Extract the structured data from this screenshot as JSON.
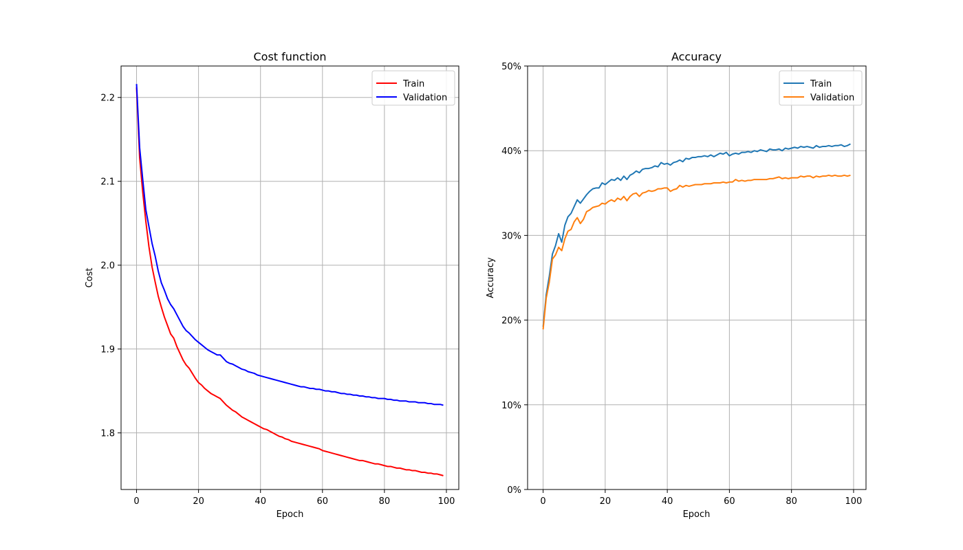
{
  "chart_data": [
    {
      "type": "line",
      "title": "Cost function",
      "xlabel": "Epoch",
      "ylabel": "Cost",
      "xlim": [
        -5,
        104
      ],
      "ylim": [
        1.7325,
        2.2375
      ],
      "xticks": [
        0,
        20,
        40,
        60,
        80,
        100
      ],
      "yticks": [
        1.8,
        1.9,
        2.0,
        2.1,
        2.2
      ],
      "ytick_format": "fixed1",
      "grid": true,
      "legend_position": "top-right",
      "series": [
        {
          "name": "Train",
          "color": "#ff0000",
          "x": [
            0,
            1,
            2,
            3,
            4,
            5,
            6,
            7,
            8,
            9,
            10,
            11,
            12,
            13,
            14,
            15,
            16,
            17,
            18,
            19,
            20,
            21,
            22,
            23,
            24,
            25,
            26,
            27,
            28,
            29,
            30,
            31,
            32,
            33,
            34,
            35,
            36,
            37,
            38,
            39,
            40,
            41,
            42,
            43,
            44,
            45,
            46,
            47,
            48,
            49,
            50,
            51,
            52,
            53,
            54,
            55,
            56,
            57,
            58,
            59,
            60,
            61,
            62,
            63,
            64,
            65,
            66,
            67,
            68,
            69,
            70,
            71,
            72,
            73,
            74,
            75,
            76,
            77,
            78,
            79,
            80,
            81,
            82,
            83,
            84,
            85,
            86,
            87,
            88,
            89,
            90,
            91,
            92,
            93,
            94,
            95,
            96,
            97,
            98,
            99
          ],
          "y": [
            2.212,
            2.128,
            2.087,
            2.052,
            2.022,
            1.998,
            1.98,
            1.963,
            1.95,
            1.938,
            1.928,
            1.918,
            1.913,
            1.903,
            1.895,
            1.887,
            1.881,
            1.877,
            1.871,
            1.865,
            1.86,
            1.857,
            1.853,
            1.85,
            1.847,
            1.845,
            1.843,
            1.841,
            1.837,
            1.833,
            1.83,
            1.827,
            1.825,
            1.822,
            1.819,
            1.817,
            1.815,
            1.813,
            1.811,
            1.809,
            1.807,
            1.805,
            1.804,
            1.802,
            1.8,
            1.798,
            1.796,
            1.795,
            1.793,
            1.792,
            1.79,
            1.789,
            1.788,
            1.787,
            1.786,
            1.785,
            1.784,
            1.783,
            1.782,
            1.781,
            1.779,
            1.778,
            1.777,
            1.776,
            1.775,
            1.774,
            1.773,
            1.772,
            1.771,
            1.77,
            1.769,
            1.768,
            1.767,
            1.767,
            1.766,
            1.765,
            1.764,
            1.763,
            1.763,
            1.762,
            1.761,
            1.76,
            1.76,
            1.759,
            1.758,
            1.758,
            1.757,
            1.756,
            1.756,
            1.755,
            1.755,
            1.754,
            1.753,
            1.753,
            1.752,
            1.752,
            1.751,
            1.751,
            1.75,
            1.749
          ]
        },
        {
          "name": "Validation",
          "color": "#0000ff",
          "x": [
            0,
            1,
            2,
            3,
            4,
            5,
            6,
            7,
            8,
            9,
            10,
            11,
            12,
            13,
            14,
            15,
            16,
            17,
            18,
            19,
            20,
            21,
            22,
            23,
            24,
            25,
            26,
            27,
            28,
            29,
            30,
            31,
            32,
            33,
            34,
            35,
            36,
            37,
            38,
            39,
            40,
            41,
            42,
            43,
            44,
            45,
            46,
            47,
            48,
            49,
            50,
            51,
            52,
            53,
            54,
            55,
            56,
            57,
            58,
            59,
            60,
            61,
            62,
            63,
            64,
            65,
            66,
            67,
            68,
            69,
            70,
            71,
            72,
            73,
            74,
            75,
            76,
            77,
            78,
            79,
            80,
            81,
            82,
            83,
            84,
            85,
            86,
            87,
            88,
            89,
            90,
            91,
            92,
            93,
            94,
            95,
            96,
            97,
            98,
            99
          ],
          "y": [
            2.216,
            2.14,
            2.102,
            2.066,
            2.046,
            2.026,
            2.011,
            1.993,
            1.979,
            1.97,
            1.96,
            1.953,
            1.948,
            1.941,
            1.934,
            1.927,
            1.922,
            1.919,
            1.915,
            1.911,
            1.908,
            1.905,
            1.902,
            1.899,
            1.897,
            1.895,
            1.893,
            1.893,
            1.889,
            1.885,
            1.883,
            1.882,
            1.88,
            1.878,
            1.876,
            1.875,
            1.873,
            1.872,
            1.871,
            1.869,
            1.868,
            1.867,
            1.866,
            1.865,
            1.864,
            1.863,
            1.862,
            1.861,
            1.86,
            1.859,
            1.858,
            1.857,
            1.856,
            1.855,
            1.855,
            1.854,
            1.853,
            1.853,
            1.852,
            1.852,
            1.851,
            1.85,
            1.85,
            1.849,
            1.849,
            1.848,
            1.847,
            1.847,
            1.846,
            1.846,
            1.845,
            1.845,
            1.844,
            1.844,
            1.843,
            1.843,
            1.842,
            1.842,
            1.841,
            1.841,
            1.841,
            1.84,
            1.84,
            1.839,
            1.839,
            1.838,
            1.838,
            1.838,
            1.837,
            1.837,
            1.837,
            1.836,
            1.836,
            1.836,
            1.835,
            1.835,
            1.834,
            1.834,
            1.834,
            1.833
          ]
        }
      ]
    },
    {
      "type": "line",
      "title": "Accuracy",
      "xlabel": "Epoch",
      "ylabel": "Accuracy",
      "xlim": [
        -5,
        104
      ],
      "ylim": [
        0,
        50
      ],
      "xticks": [
        0,
        20,
        40,
        60,
        80,
        100
      ],
      "yticks": [
        0,
        10,
        20,
        30,
        40,
        50
      ],
      "ytick_format": "percent",
      "grid": true,
      "legend_position": "top-right",
      "series": [
        {
          "name": "Train",
          "color": "#1f77b4",
          "x": [
            0,
            1,
            2,
            3,
            4,
            5,
            6,
            7,
            8,
            9,
            10,
            11,
            12,
            13,
            14,
            15,
            16,
            17,
            18,
            19,
            20,
            21,
            22,
            23,
            24,
            25,
            26,
            27,
            28,
            29,
            30,
            31,
            32,
            33,
            34,
            35,
            36,
            37,
            38,
            39,
            40,
            41,
            42,
            43,
            44,
            45,
            46,
            47,
            48,
            49,
            50,
            51,
            52,
            53,
            54,
            55,
            56,
            57,
            58,
            59,
            60,
            61,
            62,
            63,
            64,
            65,
            66,
            67,
            68,
            69,
            70,
            71,
            72,
            73,
            74,
            75,
            76,
            77,
            78,
            79,
            80,
            81,
            82,
            83,
            84,
            85,
            86,
            87,
            88,
            89,
            90,
            91,
            92,
            93,
            94,
            95,
            96,
            97,
            98,
            99
          ],
          "y": [
            19.2,
            23.0,
            25.2,
            27.8,
            28.8,
            30.2,
            29.2,
            31.2,
            32.2,
            32.6,
            33.4,
            34.2,
            33.8,
            34.3,
            34.8,
            35.2,
            35.5,
            35.6,
            35.6,
            36.2,
            36.0,
            36.3,
            36.6,
            36.5,
            36.8,
            36.5,
            37.0,
            36.6,
            37.1,
            37.3,
            37.6,
            37.4,
            37.8,
            37.9,
            37.9,
            38.0,
            38.2,
            38.1,
            38.6,
            38.4,
            38.5,
            38.3,
            38.6,
            38.7,
            38.9,
            38.7,
            39.1,
            39.0,
            39.2,
            39.2,
            39.3,
            39.3,
            39.4,
            39.3,
            39.5,
            39.3,
            39.5,
            39.7,
            39.6,
            39.8,
            39.4,
            39.6,
            39.7,
            39.6,
            39.8,
            39.8,
            39.9,
            39.8,
            40.0,
            39.9,
            40.1,
            40.0,
            39.9,
            40.2,
            40.1,
            40.1,
            40.2,
            40.0,
            40.3,
            40.2,
            40.3,
            40.4,
            40.3,
            40.5,
            40.4,
            40.5,
            40.4,
            40.3,
            40.6,
            40.4,
            40.5,
            40.5,
            40.6,
            40.5,
            40.6,
            40.6,
            40.7,
            40.5,
            40.6,
            40.8
          ]
        },
        {
          "name": "Validation",
          "color": "#ff7f0e",
          "x": [
            0,
            1,
            2,
            3,
            4,
            5,
            6,
            7,
            8,
            9,
            10,
            11,
            12,
            13,
            14,
            15,
            16,
            17,
            18,
            19,
            20,
            21,
            22,
            23,
            24,
            25,
            26,
            27,
            28,
            29,
            30,
            31,
            32,
            33,
            34,
            35,
            36,
            37,
            38,
            39,
            40,
            41,
            42,
            43,
            44,
            45,
            46,
            47,
            48,
            49,
            50,
            51,
            52,
            53,
            54,
            55,
            56,
            57,
            58,
            59,
            60,
            61,
            62,
            63,
            64,
            65,
            66,
            67,
            68,
            69,
            70,
            71,
            72,
            73,
            74,
            75,
            76,
            77,
            78,
            79,
            80,
            81,
            82,
            83,
            84,
            85,
            86,
            87,
            88,
            89,
            90,
            91,
            92,
            93,
            94,
            95,
            96,
            97,
            98,
            99
          ],
          "y": [
            18.9,
            22.6,
            24.5,
            27.2,
            27.7,
            28.6,
            28.2,
            29.6,
            30.5,
            30.7,
            31.6,
            32.1,
            31.4,
            31.9,
            32.8,
            33.0,
            33.3,
            33.4,
            33.5,
            33.8,
            33.7,
            34.0,
            34.2,
            34.0,
            34.4,
            34.2,
            34.6,
            34.1,
            34.6,
            34.9,
            35.0,
            34.6,
            35.0,
            35.1,
            35.3,
            35.2,
            35.3,
            35.5,
            35.5,
            35.6,
            35.6,
            35.2,
            35.4,
            35.5,
            35.9,
            35.7,
            35.9,
            35.8,
            35.9,
            36.0,
            36.0,
            36.0,
            36.1,
            36.1,
            36.1,
            36.2,
            36.2,
            36.2,
            36.3,
            36.2,
            36.3,
            36.3,
            36.6,
            36.4,
            36.5,
            36.4,
            36.5,
            36.5,
            36.6,
            36.6,
            36.6,
            36.6,
            36.6,
            36.7,
            36.7,
            36.8,
            36.9,
            36.7,
            36.8,
            36.7,
            36.8,
            36.8,
            36.8,
            37.0,
            36.9,
            37.0,
            37.0,
            36.8,
            37.0,
            36.9,
            37.0,
            37.0,
            37.1,
            37.0,
            37.1,
            37.0,
            37.0,
            37.1,
            37.0,
            37.1
          ]
        }
      ]
    }
  ]
}
